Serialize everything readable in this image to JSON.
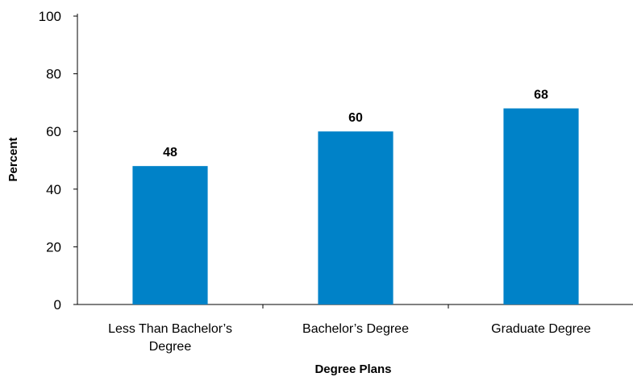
{
  "chart_data": {
    "type": "bar",
    "title": "",
    "xlabel": "Degree Plans",
    "ylabel": "Percent",
    "categories": [
      "Less Than Bachelor’s Degree",
      "Bachelor’s Degree",
      "Graduate Degree"
    ],
    "category_lines": [
      [
        "Less Than Bachelor’s",
        "Degree"
      ],
      [
        "Bachelor’s Degree"
      ],
      [
        "Graduate Degree"
      ]
    ],
    "values": [
      48,
      60,
      68
    ],
    "data_labels": [
      "48",
      "60",
      "68"
    ],
    "ylim": [
      0,
      100
    ],
    "yticks": [
      0,
      20,
      40,
      60,
      80,
      100
    ],
    "grid": false,
    "legend": "none",
    "bar_color": "#0082C8",
    "text_color": "#000000",
    "axis_color": "#000000"
  }
}
